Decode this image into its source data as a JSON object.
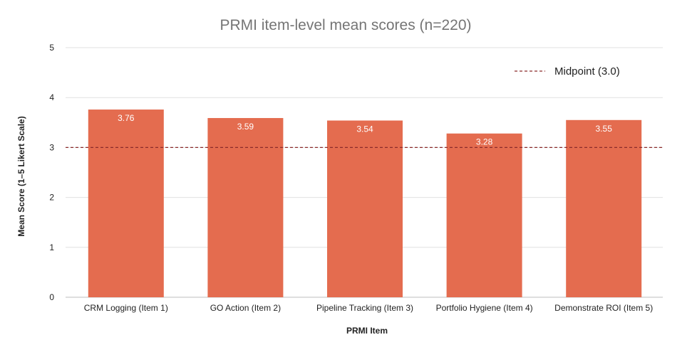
{
  "chart_data": {
    "type": "bar",
    "title": "PRMI item-level mean scores (n=220)",
    "xlabel": "PRMI Item",
    "ylabel": "Mean Score (1–5 Likert Scale)",
    "categories": [
      "CRM Logging (Item 1)",
      "GO Action (Item 2)",
      "Pipeline Tracking (Item 3)",
      "Portfolio Hygiene (Item 4)",
      "Demonstrate ROI (Item 5)"
    ],
    "values": [
      3.76,
      3.59,
      3.54,
      3.28,
      3.55
    ],
    "data_labels": [
      "3.76",
      "3.59",
      "3.54",
      "3.28",
      "3.55"
    ],
    "ylim": [
      0,
      5
    ],
    "yticks": [
      0,
      1,
      2,
      3,
      4,
      5
    ],
    "grid": true,
    "bar_color": "#e46c4f",
    "reference_line": {
      "label": "Midpoint (3.0)",
      "value": 3.0,
      "color": "#8a2a2a",
      "style": "dashed"
    },
    "legend_position": "top-right"
  }
}
